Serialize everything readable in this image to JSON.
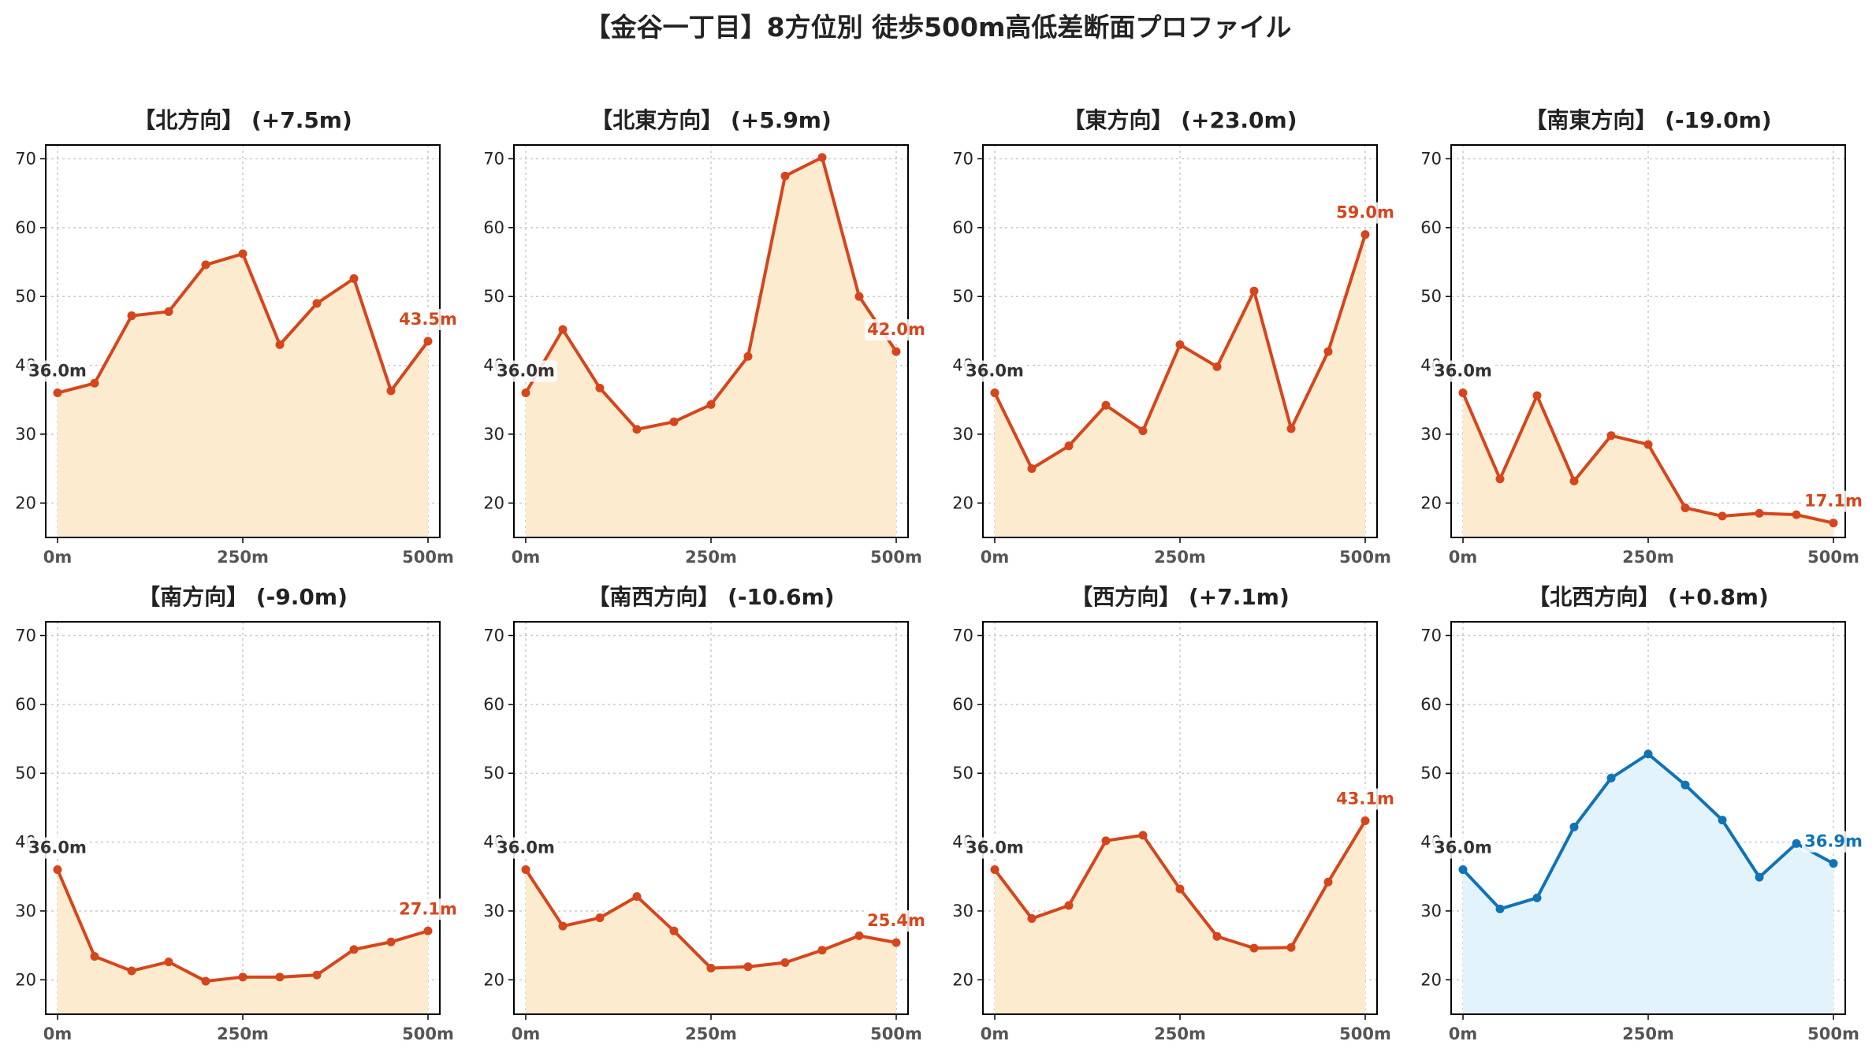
{
  "title": "【金谷一丁目】8方位別 徒歩500m高低差断面プロファイル",
  "colors": {
    "up_line": "#D6451B",
    "up_fill": "#FDEBD0",
    "down_line": "#0F73B8",
    "down_fill": "#E3F3FB",
    "start_label": "#333333",
    "grid": "#CCCCCC"
  },
  "chart_data": [
    {
      "type": "area",
      "title": "【北方向】 (+7.5m)",
      "x": [
        0,
        50,
        100,
        150,
        200,
        250,
        300,
        350,
        400,
        450,
        500
      ],
      "values": [
        36.0,
        37.4,
        47.2,
        47.8,
        54.6,
        56.2,
        43.0,
        49.0,
        52.6,
        36.3,
        43.5
      ],
      "start_label": "36.0m",
      "end_label": "43.5m",
      "trend": "up",
      "xticks": [
        "0m",
        "250m",
        "500m"
      ],
      "yticks": [
        "20",
        "30",
        "40",
        "50",
        "60",
        "70"
      ],
      "ylim": [
        15,
        72
      ],
      "xlim": [
        0,
        500
      ],
      "grid": true
    },
    {
      "type": "area",
      "title": "【北東方向】 (+5.9m)",
      "x": [
        0,
        50,
        100,
        150,
        200,
        250,
        300,
        350,
        400,
        450,
        500
      ],
      "values": [
        36.0,
        45.2,
        36.7,
        30.7,
        31.8,
        34.3,
        41.3,
        67.5,
        70.2,
        50.0,
        42.0
      ],
      "start_label": "36.0m",
      "end_label": "42.0m",
      "trend": "up",
      "xticks": [
        "0m",
        "250m",
        "500m"
      ],
      "yticks": [
        "20",
        "30",
        "40",
        "50",
        "60",
        "70"
      ],
      "ylim": [
        15,
        72
      ],
      "xlim": [
        0,
        500
      ],
      "grid": true
    },
    {
      "type": "area",
      "title": "【東方向】 (+23.0m)",
      "x": [
        0,
        50,
        100,
        150,
        200,
        250,
        300,
        350,
        400,
        450,
        500
      ],
      "values": [
        36.0,
        25.0,
        28.3,
        34.2,
        30.5,
        43.0,
        39.8,
        50.8,
        30.8,
        42.0,
        59.0
      ],
      "start_label": "36.0m",
      "end_label": "59.0m",
      "trend": "up",
      "xticks": [
        "0m",
        "250m",
        "500m"
      ],
      "yticks": [
        "20",
        "30",
        "40",
        "50",
        "60",
        "70"
      ],
      "ylim": [
        15,
        72
      ],
      "xlim": [
        0,
        500
      ],
      "grid": true
    },
    {
      "type": "area",
      "title": "【南東方向】 (-19.0m)",
      "x": [
        0,
        50,
        100,
        150,
        200,
        250,
        300,
        350,
        400,
        450,
        500
      ],
      "values": [
        36.0,
        23.5,
        35.6,
        23.2,
        29.8,
        28.5,
        19.3,
        18.1,
        18.5,
        18.3,
        17.1
      ],
      "start_label": "36.0m",
      "end_label": "17.1m",
      "trend": "up",
      "xticks": [
        "0m",
        "250m",
        "500m"
      ],
      "yticks": [
        "20",
        "30",
        "40",
        "50",
        "60",
        "70"
      ],
      "ylim": [
        15,
        72
      ],
      "xlim": [
        0,
        500
      ],
      "grid": true
    },
    {
      "type": "area",
      "title": "【南方向】 (-9.0m)",
      "x": [
        0,
        50,
        100,
        150,
        200,
        250,
        300,
        350,
        400,
        450,
        500
      ],
      "values": [
        36.0,
        23.4,
        21.3,
        22.6,
        19.8,
        20.4,
        20.4,
        20.7,
        24.4,
        25.5,
        27.1
      ],
      "start_label": "36.0m",
      "end_label": "27.1m",
      "trend": "up",
      "xticks": [
        "0m",
        "250m",
        "500m"
      ],
      "yticks": [
        "20",
        "30",
        "40",
        "50",
        "60",
        "70"
      ],
      "ylim": [
        15,
        72
      ],
      "xlim": [
        0,
        500
      ],
      "grid": true
    },
    {
      "type": "area",
      "title": "【南西方向】 (-10.6m)",
      "x": [
        0,
        50,
        100,
        150,
        200,
        250,
        300,
        350,
        400,
        450,
        500
      ],
      "values": [
        36.0,
        27.8,
        29.0,
        32.1,
        27.1,
        21.7,
        21.9,
        22.5,
        24.3,
        26.4,
        25.4
      ],
      "start_label": "36.0m",
      "end_label": "25.4m",
      "trend": "up",
      "xticks": [
        "0m",
        "250m",
        "500m"
      ],
      "yticks": [
        "20",
        "30",
        "40",
        "50",
        "60",
        "70"
      ],
      "ylim": [
        15,
        72
      ],
      "xlim": [
        0,
        500
      ],
      "grid": true
    },
    {
      "type": "area",
      "title": "【西方向】 (+7.1m)",
      "x": [
        0,
        50,
        100,
        150,
        200,
        250,
        300,
        350,
        400,
        450,
        500
      ],
      "values": [
        36.0,
        28.9,
        30.8,
        40.2,
        41.0,
        33.2,
        26.3,
        24.6,
        24.7,
        34.2,
        43.1
      ],
      "start_label": "36.0m",
      "end_label": "43.1m",
      "trend": "up",
      "xticks": [
        "0m",
        "250m",
        "500m"
      ],
      "yticks": [
        "20",
        "30",
        "40",
        "50",
        "60",
        "70"
      ],
      "ylim": [
        15,
        72
      ],
      "xlim": [
        0,
        500
      ],
      "grid": true
    },
    {
      "type": "area",
      "title": "【北西方向】 (+0.8m)",
      "x": [
        0,
        50,
        100,
        150,
        200,
        250,
        300,
        350,
        400,
        450,
        500
      ],
      "values": [
        36.0,
        30.3,
        31.9,
        42.2,
        49.3,
        52.8,
        48.3,
        43.2,
        34.9,
        39.8,
        36.9
      ],
      "start_label": "36.0m",
      "end_label": "36.9m",
      "trend": "down",
      "xticks": [
        "0m",
        "250m",
        "500m"
      ],
      "yticks": [
        "20",
        "30",
        "40",
        "50",
        "60",
        "70"
      ],
      "ylim": [
        15,
        72
      ],
      "xlim": [
        0,
        500
      ],
      "grid": true
    }
  ]
}
